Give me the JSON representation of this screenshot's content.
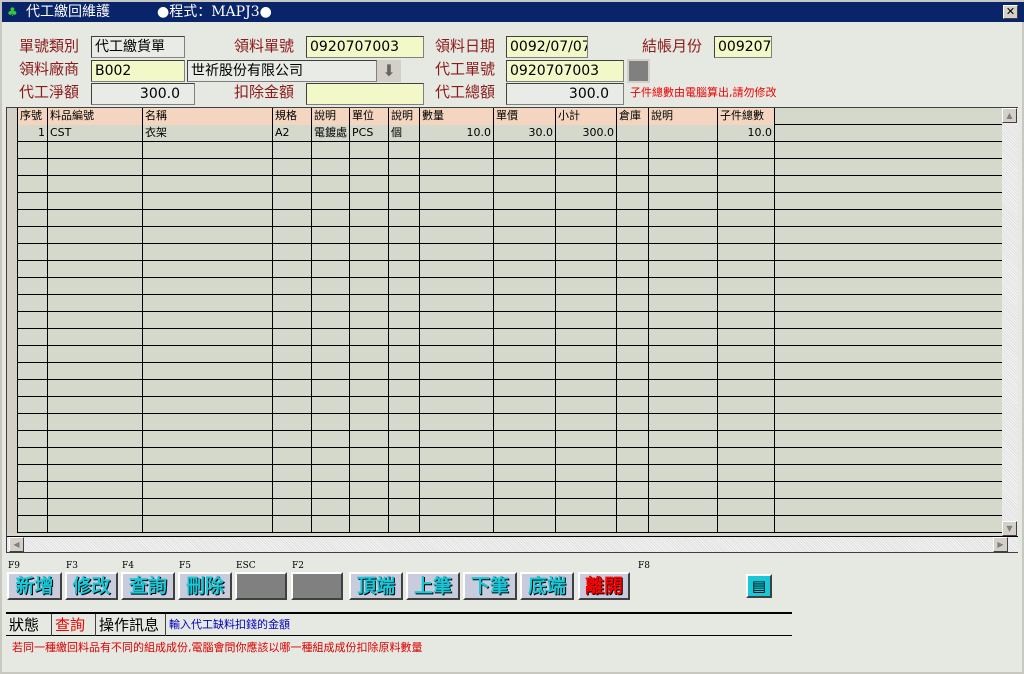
{
  "window": {
    "title": "代工繳回維護",
    "program": "●程式：MAPJ3●",
    "close": "✕"
  },
  "form": {
    "doc_type_label": "單號類別",
    "doc_type": "代工繳貨單",
    "issue_no_label": "領料單號",
    "issue_no": "0920707003",
    "issue_date_label": "領料日期",
    "issue_date": "0092/07/07",
    "month_label": "結帳月份",
    "month": "009207",
    "vendor_label": "領料廠商",
    "vendor_code": "B002",
    "vendor_name": "世祈股份有限公司",
    "work_no_label": "代工單號",
    "work_no": "0920707003",
    "net_label": "代工淨額",
    "net": "300.0",
    "deduct_label": "扣除金額",
    "deduct": "",
    "total_label": "代工總額",
    "total": "300.0",
    "warning": "子件總數由電腦算出,請勿修改"
  },
  "grid": {
    "columns": [
      "序號",
      "料品編號",
      "名稱",
      "規格",
      "說明",
      "單位",
      "說明",
      "數量",
      "單價",
      "小計",
      "倉庫",
      "說明",
      "子件總數"
    ],
    "rows": [
      [
        "1",
        "CST",
        "衣架",
        "A2",
        "電鍍處",
        "PCS",
        "個",
        "10.0",
        "30.0",
        "300.0",
        "",
        "",
        "10.0"
      ]
    ]
  },
  "toolbar": [
    {
      "key": "F9",
      "label": "新增"
    },
    {
      "key": "F3",
      "label": "修改"
    },
    {
      "key": "F4",
      "label": "查詢"
    },
    {
      "key": "F5",
      "label": "刪除"
    },
    {
      "key": "ESC",
      "label": ""
    },
    {
      "key": "F2",
      "label": ""
    },
    {
      "key": "",
      "label": "頂端"
    },
    {
      "key": "",
      "label": "上筆"
    },
    {
      "key": "",
      "label": "下筆"
    },
    {
      "key": "",
      "label": "底端"
    },
    {
      "key": "F8",
      "label": "離開"
    }
  ],
  "status": {
    "state_label": "狀態",
    "state": "查詢",
    "msg_label": "操作訊息",
    "msg": "輸入代工缺料扣錢的金額"
  },
  "hint": "若同一種繳回料品有不同的組成成份,電腦會問你應該以哪一種組成成份扣除原料數量"
}
